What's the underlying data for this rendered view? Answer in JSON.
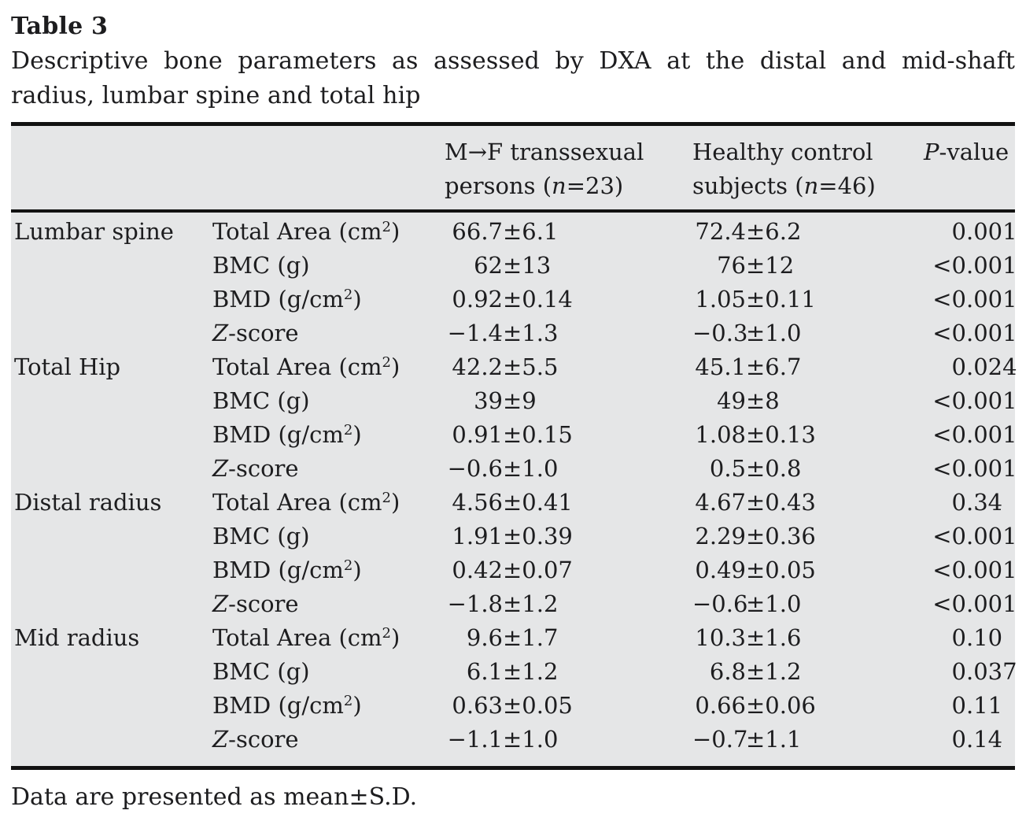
{
  "title": "Table 3",
  "caption": "Descriptive bone parameters as assessed by DXA at the distal and mid-shaft radius, lumbar spine and total hip",
  "footnote": "Data are presented as mean±S.D.",
  "colors": {
    "table_bg": "#e5e6e7",
    "rule": "#121212",
    "text": "#1d1d1f"
  },
  "table": {
    "header": {
      "site": "",
      "parameter": "",
      "mtf_lines": [
        "M→F transsexual",
        "persons (*n*=23)"
      ],
      "control_lines": [
        "Healthy control",
        "subjects (*n*=46)"
      ],
      "pvalue": "*P*-value"
    },
    "groups": [
      {
        "site": "Lumbar spine",
        "rows": [
          {
            "param": "Total Area (cm^2)",
            "mtf": "66.7±6.1",
            "ctrl": "72.4±6.2",
            "p": "0.001"
          },
          {
            "param": "BMC (g)",
            "mtf": "62±13",
            "ctrl": "76±12",
            "p": "<0.001"
          },
          {
            "param": "BMD (g/cm^2)",
            "mtf": "0.92±0.14",
            "ctrl": "1.05±0.11",
            "p": "<0.001"
          },
          {
            "param": "*Z*-score",
            "mtf": "−1.4±1.3",
            "ctrl": "−0.3±1.0",
            "p": "<0.001"
          }
        ]
      },
      {
        "site": "Total Hip",
        "rows": [
          {
            "param": "Total Area (cm^2)",
            "mtf": "42.2±5.5",
            "ctrl": "45.1±6.7",
            "p": "0.024"
          },
          {
            "param": "BMC (g)",
            "mtf": "39±9",
            "ctrl": "49±8",
            "p": "<0.001"
          },
          {
            "param": "BMD (g/cm^2)",
            "mtf": "0.91±0.15",
            "ctrl": "1.08±0.13",
            "p": "<0.001"
          },
          {
            "param": "*Z*-score",
            "mtf": "−0.6±1.0",
            "ctrl": "0.5±0.8",
            "p": "<0.001"
          }
        ]
      },
      {
        "site": "Distal radius",
        "rows": [
          {
            "param": "Total Area (cm^2)",
            "mtf": "4.56±0.41",
            "ctrl": "4.67±0.43",
            "p": "0.34"
          },
          {
            "param": "BMC (g)",
            "mtf": "1.91±0.39",
            "ctrl": "2.29±0.36",
            "p": "<0.001"
          },
          {
            "param": "BMD (g/cm^2)",
            "mtf": "0.42±0.07",
            "ctrl": "0.49±0.05",
            "p": "<0.001"
          },
          {
            "param": "*Z*-score",
            "mtf": "−1.8±1.2",
            "ctrl": "−0.6±1.0",
            "p": "<0.001"
          }
        ]
      },
      {
        "site": "Mid radius",
        "rows": [
          {
            "param": "Total Area (cm^2)",
            "mtf": "9.6±1.7",
            "ctrl": "10.3±1.6",
            "p": "0.10"
          },
          {
            "param": "BMC (g)",
            "mtf": "6.1±1.2",
            "ctrl": "6.8±1.2",
            "p": "0.037"
          },
          {
            "param": "BMD (g/cm^2)",
            "mtf": "0.63±0.05",
            "ctrl": "0.66±0.06",
            "p": "0.11"
          },
          {
            "param": "*Z*-score",
            "mtf": "−1.1±1.0",
            "ctrl": "−0.7±1.1",
            "p": "0.14"
          }
        ]
      }
    ]
  }
}
